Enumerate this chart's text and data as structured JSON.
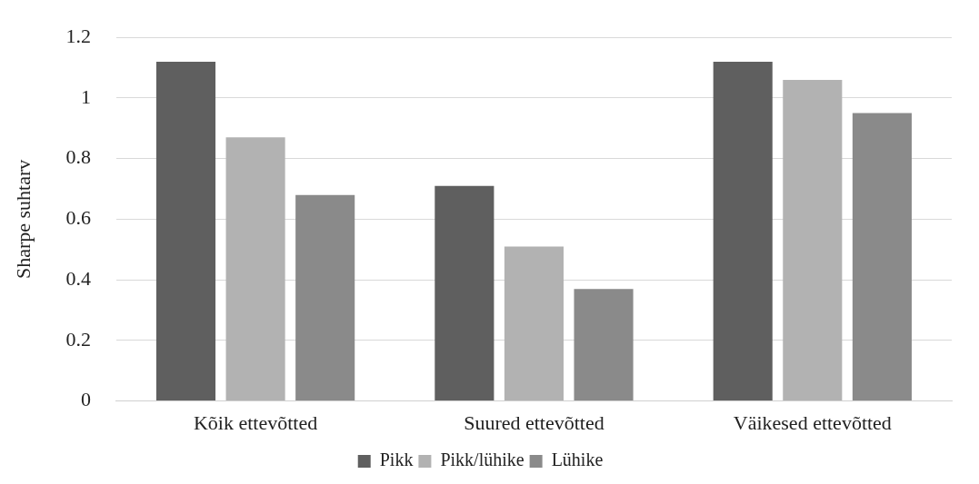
{
  "chart_data": {
    "type": "bar",
    "ylabel": "Sharpe suhtarv",
    "categories": [
      "Kõik ettevõtted",
      "Suured ettevõtted",
      "Väikesed ettevõtted"
    ],
    "series": [
      {
        "name": "Pikk",
        "color": "#5f5f5f",
        "values": [
          1.12,
          0.71,
          1.12
        ]
      },
      {
        "name": "Pikk/lühike",
        "color": "#b2b2b2",
        "values": [
          0.87,
          0.51,
          1.06
        ]
      },
      {
        "name": "Lühike",
        "color": "#8a8a8a",
        "values": [
          0.68,
          0.37,
          0.95
        ]
      }
    ],
    "ylim": [
      0,
      1.2
    ],
    "yticks": [
      0,
      0.2,
      0.4,
      0.6,
      0.8,
      1,
      1.2
    ],
    "grid": "y",
    "legend": "bottom"
  }
}
